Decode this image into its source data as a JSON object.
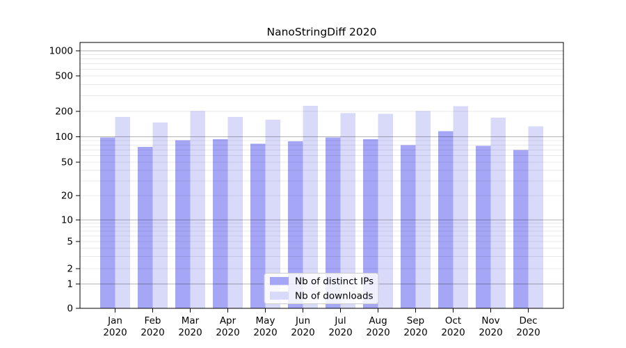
{
  "chart_data": {
    "type": "bar",
    "title": "NanoStringDiff 2020",
    "categories": [
      "Jan",
      "Feb",
      "Mar",
      "Apr",
      "May",
      "Jun",
      "Jul",
      "Aug",
      "Sep",
      "Oct",
      "Nov",
      "Dec"
    ],
    "category_year": "2020",
    "series": [
      {
        "name": "Nb of distinct IPs",
        "color": "#a6a6f7",
        "values": [
          98,
          76,
          91,
          94,
          83,
          88,
          98,
          94,
          80,
          116,
          78,
          70
        ]
      },
      {
        "name": "Nb of downloads",
        "color": "#d9d9fa",
        "values": [
          171,
          148,
          201,
          171,
          160,
          231,
          190,
          188,
          202,
          228,
          168,
          133
        ]
      }
    ],
    "xlabel": "",
    "ylabel": "",
    "y_ticks": [
      0,
      1,
      2,
      5,
      10,
      20,
      50,
      100,
      200,
      500,
      1000
    ],
    "ylim": [
      0,
      1000
    ],
    "yscale": "log-like",
    "grid": true,
    "legend_position": "lower center"
  }
}
